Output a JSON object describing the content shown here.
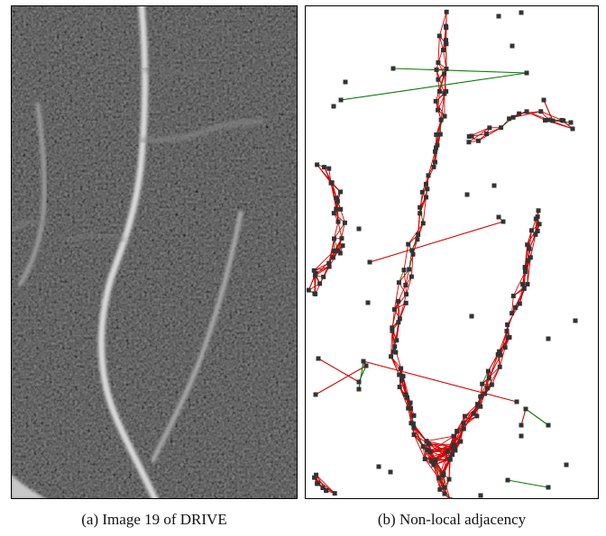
{
  "figure": {
    "subfigures": [
      {
        "label": "(a)",
        "caption": "Image 19 of DRIVE",
        "content": "grayscale retinal vessel image"
      },
      {
        "label": "(b)",
        "caption": "Non-local adjacency",
        "content": "superpixel graph with local and non-local edges"
      }
    ],
    "colors": {
      "background_a": "#1a1a1a",
      "vessel": "#e6e6e6",
      "local_edge": "#0a7a0a",
      "nonlocal_edge": "#d40000",
      "node": "#333333",
      "frame": "#000000"
    }
  }
}
